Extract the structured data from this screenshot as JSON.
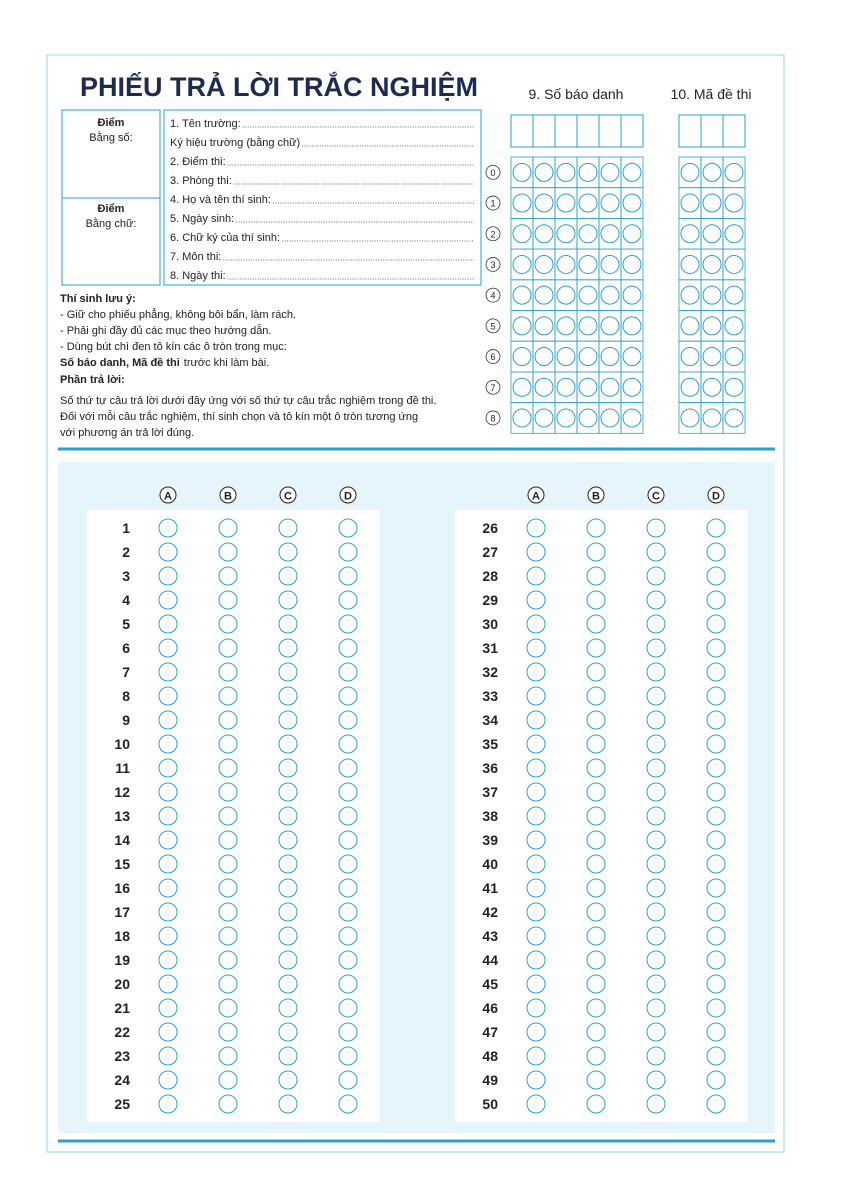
{
  "title": "PHIẾU TRẢ LỜI TRẮC NGHIỆM",
  "score": {
    "number_label": "Điểm",
    "number_sub": "Bằng số:",
    "word_label": "Điểm",
    "word_sub": "Bằng chữ:"
  },
  "fields": [
    "1. Tên trường:",
    "Ký hiệu trường (bằng chữ)",
    "2. Điểm thi:",
    "3. Phòng thi:",
    "4. Họ và tên thí sinh:",
    "5. Ngày sinh:",
    "6. Chữ ký của thí sinh:",
    "7. Môn thi:",
    "8. Ngày thi:"
  ],
  "notes": {
    "heading": "Thí sinh lưu ý:",
    "items": [
      "- Giữ cho phiếu phẳng, không bôi bẩn, làm rách.",
      "- Phải ghi đầy đủ các mục theo hướng dẫn.",
      "- Dùng bút chì đen tô kín các ô tròn trong mục:"
    ],
    "emphasis": "Số báo danh, Mã đề thi",
    "emphasis_tail": "trước khi làm bài.",
    "answer_heading": "Phần trả lời:",
    "answer_text": [
      "Số thứ tự câu trả lời dưới đây ứng với số thứ tự câu trắc nghiệm trong đề thi.",
      "Đối với mỗi câu trắc nghiệm, thí sinh chọn và tô kín một ô tròn tương ứng",
      "với phương án trả lời đúng."
    ]
  },
  "id_grid": {
    "student_id_label": "9. Số báo danh",
    "exam_code_label": "10. Mã đề thi",
    "digits": [
      0,
      1,
      2,
      3,
      4,
      5,
      6,
      7,
      8
    ]
  },
  "answers": {
    "options": [
      "A",
      "B",
      "C",
      "D"
    ],
    "questions": [
      1,
      2,
      3,
      4,
      5,
      6,
      7,
      8,
      9,
      10,
      11,
      12,
      13,
      14,
      15,
      16,
      17,
      18,
      19,
      20,
      21,
      22,
      23,
      24,
      25,
      26,
      27,
      28,
      29,
      30,
      31,
      32,
      33,
      34,
      35,
      36,
      37,
      38,
      39,
      40,
      41,
      42,
      43,
      44,
      45,
      46,
      47,
      48,
      49,
      50
    ]
  }
}
